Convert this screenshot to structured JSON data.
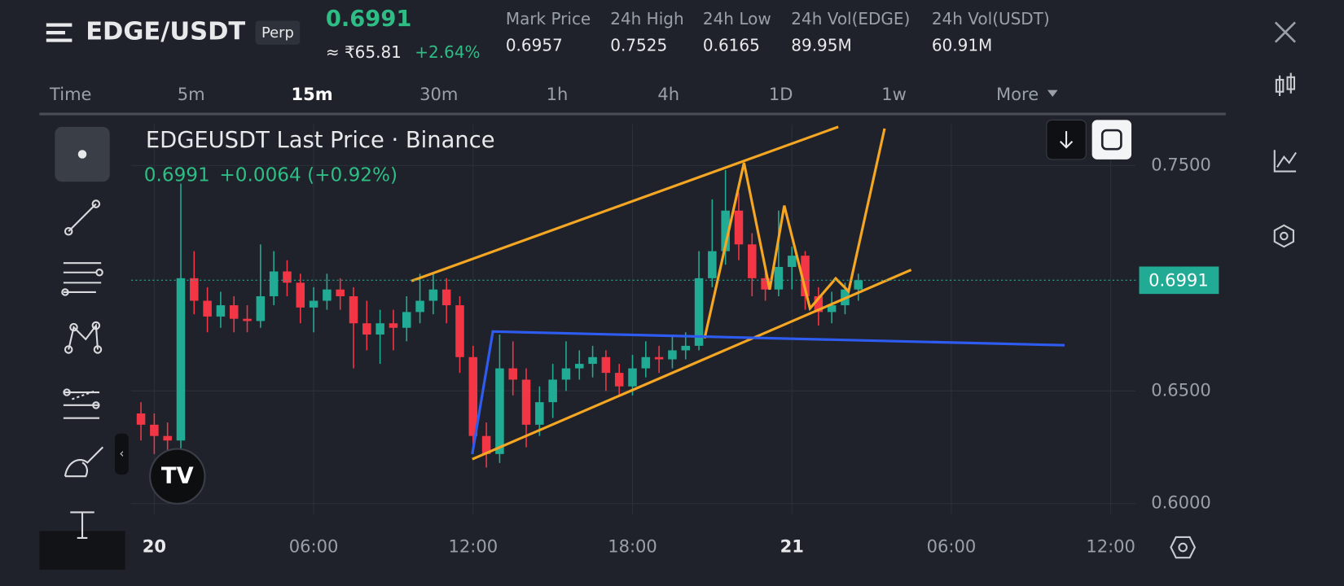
{
  "header": {
    "pair": "EDGE/USDT",
    "badge": "Perp",
    "price": "0.6991",
    "local_price": "≈ ₹65.81",
    "change": "+2.64%",
    "stats": [
      {
        "label": "Mark Price",
        "value": "0.6957"
      },
      {
        "label": "24h High",
        "value": "0.7525"
      },
      {
        "label": "24h Low",
        "value": "0.6165"
      },
      {
        "label": "24h Vol(EDGE)",
        "value": "89.95M"
      },
      {
        "label": "24h Vol(USDT)",
        "value": "60.91M"
      }
    ]
  },
  "timeframes": [
    "Time",
    "5m",
    "15m",
    "30m",
    "1h",
    "4h",
    "1D",
    "1w",
    "More"
  ],
  "legend": {
    "title": "EDGEUSDT Last Price · Binance",
    "price": "0.6991",
    "change": "+0.0064 (+0.92%)"
  },
  "chart_data": {
    "type": "candlestick",
    "x": [
      -0.5,
      0,
      0.5,
      1,
      1.5,
      2,
      2.5,
      3,
      3.5,
      4,
      4.5,
      5,
      5.5,
      6,
      6.5,
      7,
      7.5,
      8,
      8.5,
      9,
      9.5,
      10,
      10.5,
      11,
      11.5,
      12,
      12.5,
      13,
      13.5,
      14,
      14.5,
      15,
      15.5,
      16,
      16.5,
      17,
      17.5,
      18,
      18.5,
      19,
      19.5,
      20,
      20.5,
      21,
      21.5,
      22,
      22.5,
      23,
      23.5,
      24,
      24.5,
      25,
      25.5,
      26,
      26.5
    ],
    "open": [
      0.64,
      0.635,
      0.63,
      0.628,
      0.7,
      0.69,
      0.683,
      0.688,
      0.682,
      0.681,
      0.692,
      0.703,
      0.698,
      0.687,
      0.69,
      0.695,
      0.692,
      0.68,
      0.675,
      0.68,
      0.678,
      0.685,
      0.69,
      0.695,
      0.688,
      0.665,
      0.63,
      0.622,
      0.66,
      0.655,
      0.635,
      0.645,
      0.655,
      0.66,
      0.662,
      0.665,
      0.658,
      0.652,
      0.66,
      0.665,
      0.664,
      0.668,
      0.67,
      0.7,
      0.712,
      0.73,
      0.715,
      0.7,
      0.695,
      0.705,
      0.71,
      0.692,
      0.685,
      0.688,
      0.695
    ],
    "high": [
      0.645,
      0.64,
      0.636,
      0.742,
      0.712,
      0.696,
      0.694,
      0.692,
      0.688,
      0.715,
      0.712,
      0.708,
      0.702,
      0.696,
      0.702,
      0.7,
      0.696,
      0.69,
      0.686,
      0.686,
      0.692,
      0.702,
      0.702,
      0.7,
      0.692,
      0.67,
      0.636,
      0.675,
      0.672,
      0.66,
      0.652,
      0.662,
      0.672,
      0.668,
      0.67,
      0.668,
      0.662,
      0.666,
      0.672,
      0.67,
      0.675,
      0.676,
      0.712,
      0.735,
      0.748,
      0.738,
      0.72,
      0.705,
      0.73,
      0.714,
      0.712,
      0.696,
      0.694,
      0.698,
      0.702
    ],
    "low": [
      0.628,
      0.622,
      0.62,
      0.624,
      0.684,
      0.676,
      0.678,
      0.676,
      0.676,
      0.678,
      0.688,
      0.692,
      0.68,
      0.676,
      0.686,
      0.686,
      0.66,
      0.668,
      0.662,
      0.668,
      0.672,
      0.68,
      0.684,
      0.68,
      0.658,
      0.622,
      0.616,
      0.618,
      0.648,
      0.625,
      0.63,
      0.638,
      0.65,
      0.655,
      0.656,
      0.65,
      0.648,
      0.648,
      0.656,
      0.658,
      0.66,
      0.664,
      0.668,
      0.696,
      0.706,
      0.708,
      0.692,
      0.69,
      0.692,
      0.695,
      0.686,
      0.679,
      0.68,
      0.684,
      0.69
    ],
    "close": [
      0.635,
      0.63,
      0.628,
      0.7,
      0.69,
      0.683,
      0.688,
      0.682,
      0.681,
      0.692,
      0.703,
      0.698,
      0.687,
      0.69,
      0.695,
      0.692,
      0.68,
      0.675,
      0.68,
      0.678,
      0.685,
      0.69,
      0.695,
      0.688,
      0.665,
      0.63,
      0.622,
      0.66,
      0.655,
      0.635,
      0.645,
      0.655,
      0.66,
      0.662,
      0.665,
      0.658,
      0.652,
      0.66,
      0.665,
      0.664,
      0.668,
      0.67,
      0.7,
      0.712,
      0.73,
      0.715,
      0.7,
      0.695,
      0.705,
      0.71,
      0.692,
      0.685,
      0.688,
      0.695,
      0.6991
    ],
    "up_color": "#22ab94",
    "down_color": "#f23645",
    "last_price": 0.6991,
    "xlim": [
      -0.87,
      36.94
    ],
    "xticks": [
      {
        "value": 0,
        "label": "20"
      },
      {
        "value": 6,
        "label": "06:00"
      },
      {
        "value": 12,
        "label": "12:00"
      },
      {
        "value": 18,
        "label": "18:00"
      },
      {
        "value": 24,
        "label": "21"
      },
      {
        "value": 30,
        "label": "06:00"
      },
      {
        "value": 36,
        "label": "12:00"
      }
    ],
    "ylim": [
      0.5954,
      0.7683
    ],
    "yticks": [
      {
        "value": 0.6,
        "label": "0.6000"
      },
      {
        "value": 0.65,
        "label": "0.6500"
      },
      {
        "value": 0.75,
        "label": "0.7500"
      }
    ],
    "grid": true
  }
}
